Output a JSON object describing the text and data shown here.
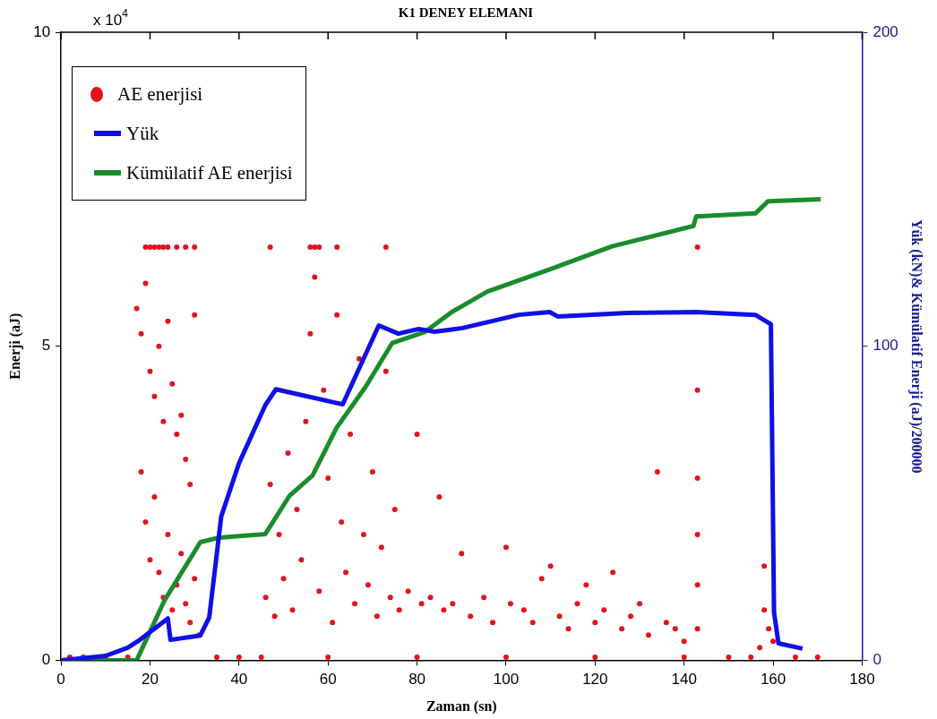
{
  "chart_data": {
    "type": "scatter",
    "title": "K1 DENEY ELEMANI",
    "xlabel": "Zaman (sn)",
    "ylabel": "Enerji (aJ)",
    "y2label": "Yük (kN)& Kümülatif Enerji (aJ)/200000",
    "annotations": [
      "x 10$^{4}$"
    ],
    "xlim": [
      0,
      180
    ],
    "xticks": [
      0,
      20,
      40,
      60,
      80,
      100,
      120,
      140,
      160,
      180
    ],
    "ylim": [
      0,
      10
    ],
    "yticks": [
      0,
      5,
      10
    ],
    "y2lim": [
      0,
      200
    ],
    "y2ticks": [
      0,
      100,
      200
    ],
    "legend": "top left",
    "series": [
      {
        "name": "AE enerjisi",
        "marker": "circle",
        "color": "#e0141c",
        "x": [
          19,
          20,
          21,
          22,
          23,
          24,
          26,
          28,
          30,
          47,
          56,
          57,
          58,
          62,
          73,
          17,
          18,
          19,
          20,
          21,
          22,
          23,
          24,
          25,
          26,
          27,
          28,
          29,
          30,
          18,
          19,
          20,
          21,
          22,
          23,
          24,
          25,
          26,
          27,
          28,
          29,
          30,
          31,
          46,
          47,
          48,
          49,
          50,
          51,
          52,
          53,
          54,
          55,
          56,
          57,
          58,
          59,
          60,
          61,
          62,
          63,
          64,
          65,
          66,
          67,
          68,
          69,
          70,
          71,
          72,
          73,
          74,
          75,
          76,
          78,
          80,
          81,
          83,
          85,
          86,
          88,
          90,
          92,
          95,
          97,
          100,
          101,
          104,
          106,
          108,
          110,
          112,
          114,
          116,
          118,
          120,
          122,
          124,
          126,
          128,
          130,
          132,
          134,
          136,
          138,
          140,
          143,
          143,
          143,
          143,
          143,
          143,
          157,
          158,
          158,
          159,
          160,
          2,
          5,
          10,
          15,
          35,
          40,
          45,
          60,
          80,
          100,
          120,
          140,
          150,
          155,
          165,
          170
        ],
        "values": [
          6.58,
          6.58,
          6.58,
          6.58,
          6.58,
          6.58,
          6.58,
          6.58,
          6.58,
          6.58,
          6.58,
          6.58,
          6.58,
          6.58,
          6.58,
          5.6,
          5.2,
          6.0,
          4.6,
          4.2,
          5.0,
          3.8,
          5.4,
          4.4,
          3.6,
          3.9,
          3.2,
          2.8,
          5.5,
          3.0,
          2.2,
          1.6,
          2.6,
          1.4,
          1.0,
          2.0,
          0.8,
          1.2,
          1.7,
          0.9,
          0.6,
          1.3,
          0.4,
          1.0,
          2.8,
          0.7,
          2.0,
          1.3,
          3.3,
          0.8,
          2.4,
          1.6,
          3.8,
          5.2,
          6.1,
          1.1,
          4.3,
          2.9,
          0.6,
          5.5,
          2.2,
          1.4,
          3.6,
          0.9,
          4.8,
          2.0,
          1.2,
          3.0,
          0.7,
          1.8,
          4.6,
          1.0,
          2.4,
          0.8,
          1.1,
          3.6,
          0.9,
          1.0,
          2.6,
          0.8,
          0.9,
          1.7,
          0.7,
          1.0,
          0.6,
          1.8,
          0.9,
          0.8,
          0.6,
          1.3,
          1.5,
          0.7,
          0.5,
          0.9,
          1.2,
          0.6,
          0.8,
          1.4,
          0.5,
          0.7,
          0.9,
          0.4,
          3.0,
          0.6,
          0.5,
          0.3,
          6.58,
          4.3,
          2.9,
          2.0,
          1.2,
          0.5,
          0.2,
          1.5,
          0.8,
          0.5,
          0.3,
          0.05,
          0.05,
          0.05,
          0.05,
          0.05,
          0.05,
          0.05,
          0.05,
          0.05,
          0.05,
          0.05,
          0.05,
          0.05,
          0.05,
          0.05,
          0.05
        ]
      },
      {
        "name": "Yük",
        "type": "line",
        "axis": "y2",
        "color": "#1010e6",
        "x": [
          0,
          10,
          15,
          17.4,
          24,
          24.6,
          31.3,
          33.3,
          36,
          40,
          46,
          48.3,
          63.3,
          71.4,
          75.8,
          80.4,
          83.9,
          90.2,
          102.8,
          109.8,
          111.6,
          127.3,
          142.7,
          156,
          159.5,
          160.2,
          161.2,
          166.6
        ],
        "values": [
          0,
          1.4,
          4,
          6.2,
          13.3,
          6.5,
          7.9,
          13.6,
          45.8,
          62.8,
          81.5,
          86.3,
          81.5,
          106.6,
          104,
          105.5,
          104.6,
          105.8,
          110,
          110.9,
          109.5,
          110.6,
          110.9,
          110,
          107,
          15.3,
          5.4,
          3.7
        ]
      },
      {
        "name": "Kümülatif AE enerjisi",
        "type": "line",
        "axis": "y2",
        "color": "#1a8c2a",
        "x": [
          0,
          17,
          23.3,
          31.3,
          35.3,
          45.9,
          51.3,
          56.5,
          61.9,
          68.4,
          74.4,
          81.8,
          87.8,
          95.8,
          109.8,
          123.8,
          142.1,
          142.7,
          156,
          158.9,
          170.7
        ],
        "values": [
          0,
          0,
          19.2,
          37.6,
          39,
          40.2,
          52.3,
          58.8,
          74,
          87,
          101,
          104.6,
          110.9,
          117.4,
          124.5,
          131.8,
          138.3,
          141.3,
          142.3,
          146.2,
          146.8
        ]
      }
    ]
  }
}
